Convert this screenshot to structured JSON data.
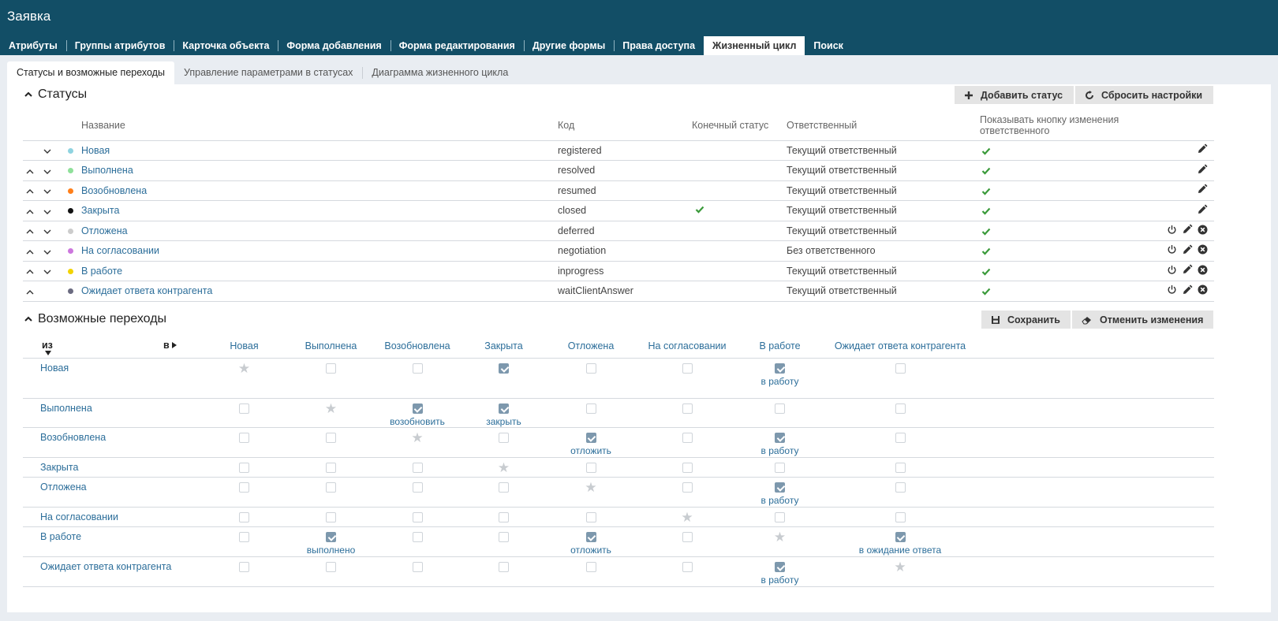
{
  "app_title": "Заявка",
  "tabs": [
    "Атрибуты",
    "Группы атрибутов",
    "Карточка объекта",
    "Форма добавления",
    "Форма редактирования",
    "Другие формы",
    "Права доступа",
    "Жизненный цикл",
    "Поиск"
  ],
  "active_tab": 7,
  "subtabs": [
    "Статусы и возможные переходы",
    "Управление параметрами в статусах",
    "Диаграмма жизненного цикла"
  ],
  "statuses_section": {
    "title": "Статусы",
    "add_button": "Добавить статус",
    "reset_button": "Сбросить настройки",
    "columns": {
      "name": "Название",
      "code": "Код",
      "final": "Конечный статус",
      "responsible": "Ответственный",
      "show_button": "Показывать кнопку изменения ответственного"
    },
    "rows": [
      {
        "name": "Новая",
        "color": "#8fd3e0",
        "code": "registered",
        "final": false,
        "responsible": "Текущий ответственный",
        "show": true,
        "up": false,
        "down": true,
        "power": false,
        "del": false
      },
      {
        "name": "Выполнена",
        "color": "#8fe09a",
        "code": "resolved",
        "final": false,
        "responsible": "Текущий ответственный",
        "show": true,
        "up": true,
        "down": true,
        "power": false,
        "del": false
      },
      {
        "name": "Возобновлена",
        "color": "#ff7f1a",
        "code": "resumed",
        "final": false,
        "responsible": "Текущий ответственный",
        "show": true,
        "up": true,
        "down": true,
        "power": false,
        "del": false
      },
      {
        "name": "Закрыта",
        "color": "#111111",
        "code": "closed",
        "final": true,
        "responsible": "Текущий ответственный",
        "show": true,
        "up": true,
        "down": true,
        "power": false,
        "del": false
      },
      {
        "name": "Отложена",
        "color": "#cccccc",
        "code": "deferred",
        "final": false,
        "responsible": "Текущий ответственный",
        "show": true,
        "up": true,
        "down": true,
        "power": true,
        "del": true
      },
      {
        "name": "На согласовании",
        "color": "#cc77dd",
        "code": "negotiation",
        "final": false,
        "responsible": "Без ответственного",
        "show": true,
        "up": true,
        "down": true,
        "power": true,
        "del": true
      },
      {
        "name": "В работе",
        "color": "#f2d300",
        "code": "inprogress",
        "final": false,
        "responsible": "Текущий ответственный",
        "show": true,
        "up": true,
        "down": true,
        "power": true,
        "del": true
      },
      {
        "name": "Ожидает ответа контрагента",
        "color": "#6b6b80",
        "code": "waitClientAnswer",
        "final": false,
        "responsible": "Текущий ответственный",
        "show": true,
        "up": true,
        "down": false,
        "power": true,
        "del": true
      }
    ]
  },
  "transitions_section": {
    "title": "Возможные переходы",
    "save_button": "Сохранить",
    "cancel_button": "Отменить изменения",
    "from_label": "из",
    "to_label": "в",
    "states": [
      "Новая",
      "Выполнена",
      "Возобновлена",
      "Закрыта",
      "Отложена",
      "На согласовании",
      "В работе",
      "Ожидает ответа контрагента"
    ],
    "matrix": [
      [
        "star",
        "off",
        "off",
        "on",
        "off",
        "off",
        "on:в работу",
        "off"
      ],
      [
        "off",
        "star",
        "on:возобновить",
        "on:закрыть",
        "off",
        "off",
        "off",
        "off"
      ],
      [
        "off",
        "off",
        "star",
        "off",
        "on:отложить",
        "off",
        "on:в работу",
        "off"
      ],
      [
        "off",
        "off",
        "off",
        "star",
        "off",
        "off",
        "off",
        "off"
      ],
      [
        "off",
        "off",
        "off",
        "off",
        "star",
        "off",
        "on:в работу",
        "off"
      ],
      [
        "off",
        "off",
        "off",
        "off",
        "off",
        "star",
        "off",
        "off"
      ],
      [
        "off",
        "on:выполнено",
        "off",
        "off",
        "on:отложить",
        "off",
        "star",
        "on:в ожидание ответа"
      ],
      [
        "off",
        "off",
        "off",
        "off",
        "off",
        "off",
        "on:в работу",
        "star"
      ]
    ]
  },
  "icon_colors": {
    "check": "#3a9a3a",
    "dark": "#333333"
  }
}
